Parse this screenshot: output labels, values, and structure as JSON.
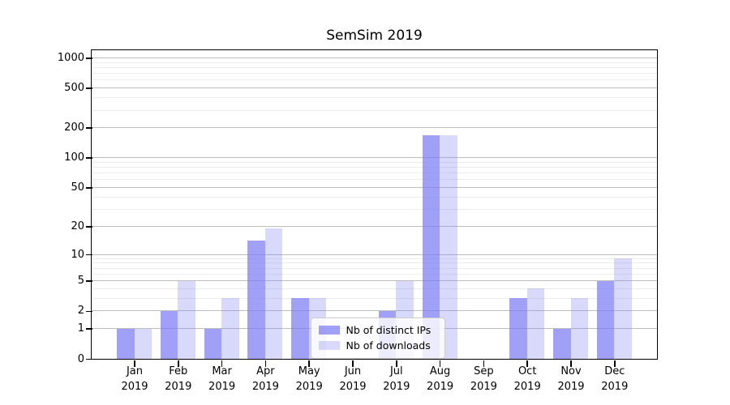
{
  "title": "SemSim 2019",
  "chart_data": {
    "type": "bar",
    "title": "SemSim 2019",
    "categories": [
      "Jan",
      "Feb",
      "Mar",
      "Apr",
      "May",
      "Jun",
      "Jul",
      "Aug",
      "Sep",
      "Oct",
      "Nov",
      "Dec"
    ],
    "year_label": "2019",
    "series": [
      {
        "name": "Nb of distinct IPs",
        "values": [
          1,
          2,
          1,
          14,
          3,
          0,
          2,
          170,
          0,
          3,
          1,
          5
        ],
        "color": "rgba(124,124,242,0.72)"
      },
      {
        "name": "Nb of downloads",
        "values": [
          1,
          5,
          3,
          19,
          3,
          0,
          5,
          170,
          0,
          4,
          3,
          9
        ],
        "color": "rgba(124,124,242,0.29)"
      }
    ],
    "xlabel": "",
    "ylabel": "",
    "yscale": "log1p",
    "yticks": [
      0,
      1,
      2,
      5,
      10,
      20,
      50,
      100,
      200,
      500,
      1000
    ],
    "minor_yticks": [
      3,
      4,
      6,
      7,
      8,
      9,
      30,
      40,
      60,
      70,
      80,
      90,
      300,
      400,
      600,
      700,
      800,
      900
    ],
    "ylim": [
      0,
      1210
    ],
    "grid": true,
    "legend_position": "lower center"
  },
  "colors": {
    "bar_ips": "rgba(124,124,242,0.72)",
    "bar_downloads": "rgba(124,124,242,0.29)",
    "major_grid": "#bdbdbd",
    "minor_grid": "#ececec",
    "spine": "#000000",
    "text": "#000000",
    "legend_border": "#cccccc",
    "background": "#ffffff"
  }
}
